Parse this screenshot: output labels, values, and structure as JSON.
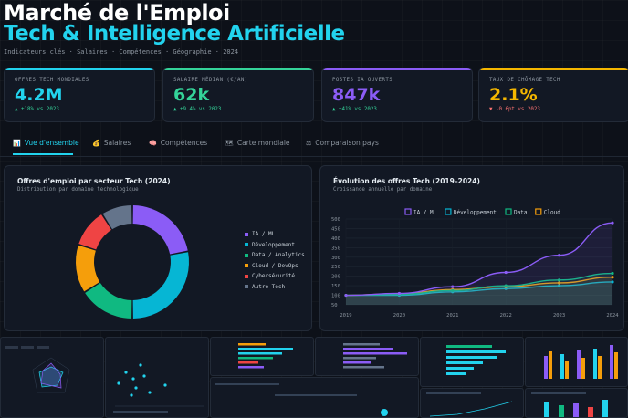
{
  "header": {
    "title_line1": "Marché de l'Emploi",
    "title_line2": "Tech & Intelligence Artificielle",
    "subtitle": "Indicateurs clés · Salaires · Compétences · Géographie · 2024"
  },
  "kpis": [
    {
      "label": "OFFRES TECH MONDIALES",
      "value": "4.2M",
      "delta": "▲ +18% vs 2023",
      "color": "#22d3ee",
      "delta_color": "#34d399"
    },
    {
      "label": "SALAIRE MÉDIAN (€/AN)",
      "value": "62k",
      "delta": "▲ +9.4% vs 2023",
      "color": "#34d399",
      "delta_color": "#34d399"
    },
    {
      "label": "POSTES IA OUVERTS",
      "value": "847k",
      "delta": "▲ +41% vs 2023",
      "color": "#8b5cf6",
      "delta_color": "#34d399"
    },
    {
      "label": "TAUX DE CHÔMAGE TECH",
      "value": "2.1%",
      "delta": "▼ -0.6pt vs 2023",
      "color": "#f5b700",
      "delta_color": "#f87171"
    }
  ],
  "tabs": [
    {
      "label": "Vue d'ensemble",
      "icon": "📊",
      "active": true
    },
    {
      "label": "Salaires",
      "icon": "💰",
      "active": false
    },
    {
      "label": "Compétences",
      "icon": "🧠",
      "active": false
    },
    {
      "label": "Carte mondiale",
      "icon": "🗺",
      "active": false
    },
    {
      "label": "Comparaison pays",
      "icon": "⚖",
      "active": false
    }
  ],
  "donut_panel": {
    "title": "Offres d'emploi par secteur Tech (2024)",
    "subtitle": "Distribution par domaine technologique"
  },
  "line_panel": {
    "title": "Évolution des offres Tech (2019–2024)",
    "subtitle": "Croissance annuelle par domaine"
  },
  "chart_data": [
    {
      "type": "pie",
      "title": "Offres d'emploi par secteur Tech (2024)",
      "categories": [
        "IA / ML",
        "Développement",
        "Data / Analytics",
        "Cloud / DevOps",
        "Cybersécurité",
        "Autre Tech"
      ],
      "values": [
        22,
        28,
        16,
        14,
        11,
        9
      ],
      "colors": [
        "#8b5cf6",
        "#06b6d4",
        "#10b981",
        "#f59e0b",
        "#ef4444",
        "#64748b"
      ]
    },
    {
      "type": "line",
      "title": "Évolution des offres Tech (2019–2024)",
      "x": [
        "2019",
        "2020",
        "2021",
        "2022",
        "2023",
        "2024"
      ],
      "ylim": [
        50,
        500
      ],
      "yticks": [
        50,
        100,
        150,
        200,
        250,
        300,
        350,
        400,
        450,
        500
      ],
      "series": [
        {
          "name": "IA / ML",
          "values": [
            100,
            110,
            145,
            220,
            310,
            480
          ],
          "color": "#8b5cf6"
        },
        {
          "name": "Développement",
          "values": [
            100,
            100,
            118,
            135,
            150,
            170
          ],
          "color": "#06b6d4"
        },
        {
          "name": "Data",
          "values": [
            100,
            105,
            125,
            150,
            180,
            215
          ],
          "color": "#10b981"
        },
        {
          "name": "Cloud",
          "values": [
            100,
            108,
            130,
            145,
            165,
            195
          ],
          "color": "#f59e0b"
        }
      ]
    }
  ]
}
